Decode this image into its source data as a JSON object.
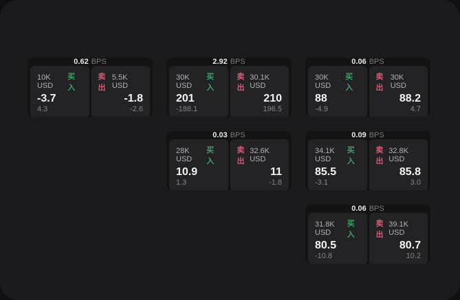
{
  "colors": {
    "page_background": "#101012",
    "panel_background": "#1b1b1d",
    "card_background": "#131314",
    "subpanel_background": "#232326",
    "buy_green": "#3fa06a",
    "sell_red": "#d65973",
    "value_white": "#f5f5f6",
    "label_gray": "#b2b2b5",
    "delta_gray": "#86868b"
  },
  "cards": [
    {
      "col": 1,
      "row": 1,
      "bps_value": "0.62",
      "bps_unit": "BPS",
      "buy": {
        "amount": "10K USD",
        "side": "买入",
        "value": "-3.7",
        "delta": "4.3"
      },
      "sell": {
        "side": "卖出",
        "amount": "5.5K USD",
        "value": "-1.8",
        "delta": "-2.6"
      }
    },
    {
      "col": 2,
      "row": 1,
      "bps_value": "2.92",
      "bps_unit": "BPS",
      "buy": {
        "amount": "30K USD",
        "side": "买入",
        "value": "201",
        "delta": "-188.1"
      },
      "sell": {
        "side": "卖出",
        "amount": "30.1K USD",
        "value": "210",
        "delta": "196.5"
      }
    },
    {
      "col": 3,
      "row": 1,
      "bps_value": "0.06",
      "bps_unit": "BPS",
      "buy": {
        "amount": "30K USD",
        "side": "买入",
        "value": "88",
        "delta": "-4.9"
      },
      "sell": {
        "side": "卖出",
        "amount": "30K USD",
        "value": "88.2",
        "delta": "4.7"
      }
    },
    {
      "col": 2,
      "row": 2,
      "bps_value": "0.03",
      "bps_unit": "BPS",
      "buy": {
        "amount": "28K USD",
        "side": "买入",
        "value": "10.9",
        "delta": "1.3"
      },
      "sell": {
        "side": "卖出",
        "amount": "32.6K USD",
        "value": "11",
        "delta": "-1.8"
      }
    },
    {
      "col": 3,
      "row": 2,
      "bps_value": "0.09",
      "bps_unit": "BPS",
      "buy": {
        "amount": "34.1K USD",
        "side": "买入",
        "value": "85.5",
        "delta": "-3.1"
      },
      "sell": {
        "side": "卖出",
        "amount": "32.8K USD",
        "value": "85.8",
        "delta": "3.0"
      }
    },
    {
      "col": 3,
      "row": 3,
      "bps_value": "0.06",
      "bps_unit": "BPS",
      "buy": {
        "amount": "31.8K USD",
        "side": "买入",
        "value": "80.5",
        "delta": "-10.8"
      },
      "sell": {
        "side": "卖出",
        "amount": "39.1K USD",
        "value": "80.7",
        "delta": "10.2"
      }
    }
  ]
}
